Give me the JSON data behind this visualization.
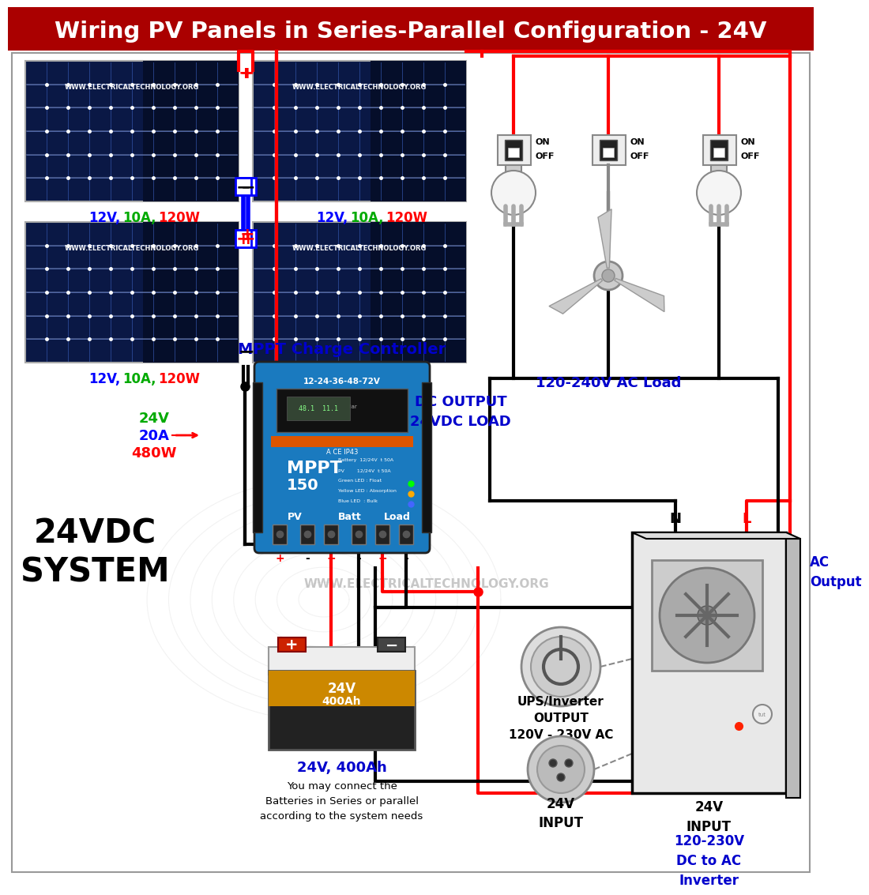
{
  "title": "Wiring PV Panels in Series-Parallel Configuration - 24V",
  "title_bg": "#aa0000",
  "title_color": "#ffffff",
  "bg_color": "#ffffff",
  "panel_label": "WWW.ELECTRICALTECHNOLOGY.ORG",
  "panel_specs_colors": [
    "#0000ff",
    "#00aa00",
    "#ff0000"
  ],
  "system_label": "24VDC\nSYSTEM",
  "mppt_label": "MPPT Charge Controller",
  "dc_output_label": "DC OUTPUT\n24VDC LOAD",
  "battery_label": "24V, 400Ah",
  "battery_note": "You may connect the\nBatteries in Series or parallel\naccording to the system needs",
  "inverter_label": "120-230V\nDC to AC\nInverter",
  "ups_output_label": "UPS/Inverter\nOUTPUT\n120V - 230V AC",
  "ac_load_label": "120-240V AC Load",
  "ac_output_label": "AC\nOutput",
  "dc_specs_colors": [
    "#00aa00",
    "#0000ff",
    "#ff0000"
  ],
  "watermark": "WWW.ELECTRICALTECHNOLOGY.ORG",
  "red": "#ff0000",
  "black": "#000000",
  "blue": "#0000ff",
  "dark_blue": "#0000cc",
  "mppt_blue": "#1a7abf",
  "lw": 3
}
